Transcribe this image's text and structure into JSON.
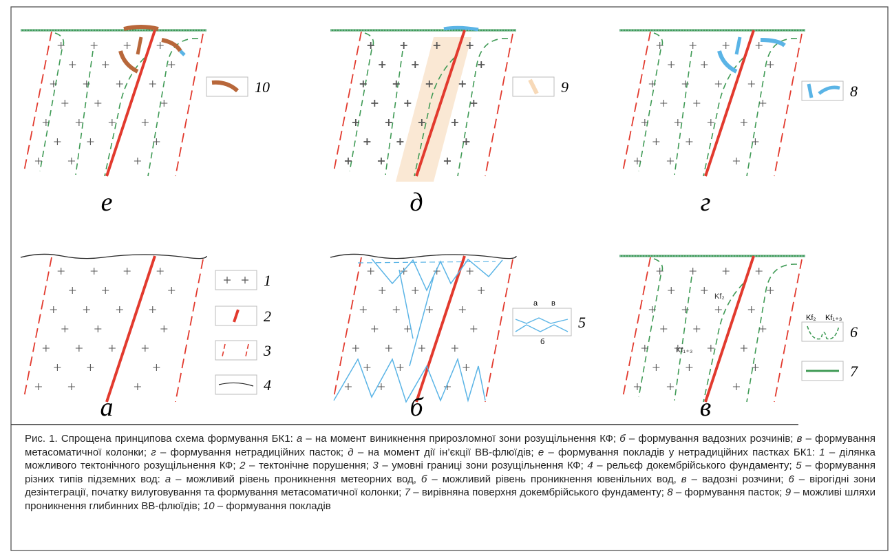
{
  "panels": [
    {
      "label": "е"
    },
    {
      "label": "д"
    },
    {
      "label": "г"
    },
    {
      "label": "а"
    },
    {
      "label": "б"
    },
    {
      "label": "в"
    }
  ],
  "panel_v_labels": [
    "Kf₂",
    "Kf₁₊₃"
  ],
  "legend": [
    {
      "number": "10"
    },
    {
      "number": "9"
    },
    {
      "number": "8"
    },
    {
      "number": "1"
    },
    {
      "number": "2"
    },
    {
      "number": "3"
    },
    {
      "number": "4"
    },
    {
      "number": "5",
      "labels": [
        "а",
        "в",
        "б"
      ]
    },
    {
      "number": "6",
      "labels": [
        "Kf₂",
        "Kf₁₊₃"
      ]
    },
    {
      "number": "7"
    }
  ],
  "caption": {
    "segments": [
      {
        "text": "Рис. 1. Спрощена принципова схема формування БК1: "
      },
      {
        "text": "а",
        "italic": true
      },
      {
        "text": " – на момент виникнення прирозломної зони розущільнення КФ; "
      },
      {
        "text": "б",
        "italic": true
      },
      {
        "text": " – формування вадозних розчинів; "
      },
      {
        "text": "в",
        "italic": true
      },
      {
        "text": " – формування метасоматичної колонки; "
      },
      {
        "text": "г",
        "italic": true
      },
      {
        "text": " – формування нетрадиційних пасток; "
      },
      {
        "text": "д",
        "italic": true
      },
      {
        "text": " – на момент дії ін’єкції ВВ-флюїдів; "
      },
      {
        "text": "е",
        "italic": true
      },
      {
        "text": " – формування покладів у нетрадиційних пастках БК1: "
      },
      {
        "text": "1",
        "italic": true
      },
      {
        "text": " – ділянка можливого тектонічного розущільнення КФ; "
      },
      {
        "text": "2",
        "italic": true
      },
      {
        "text": " – тектонічне порушення; "
      },
      {
        "text": "3",
        "italic": true
      },
      {
        "text": " – умовні границі зони розущільнення КФ; "
      },
      {
        "text": "4",
        "italic": true
      },
      {
        "text": " – рельєф докембрійського фундаменту; "
      },
      {
        "text": "5",
        "italic": true
      },
      {
        "text": " – формування різних типів підземних вод: "
      },
      {
        "text": "а",
        "italic": true
      },
      {
        "text": " – можливий рівень проникнення метеорних вод, "
      },
      {
        "text": "б",
        "italic": true
      },
      {
        "text": " – можливий рівень проникнення ювенільних вод, "
      },
      {
        "text": "в",
        "italic": true
      },
      {
        "text": " – вадозні розчини; "
      },
      {
        "text": "6",
        "italic": true
      },
      {
        "text": " – вірогідні зони дезінтеграції, початку вилуговування та формування метасоматичної колонки; "
      },
      {
        "text": "7",
        "italic": true
      },
      {
        "text": " – вирівняна поверхня докембрійського фундаменту; "
      },
      {
        "text": "8",
        "italic": true
      },
      {
        "text": " – формування пасток; "
      },
      {
        "text": "9",
        "italic": true
      },
      {
        "text": " – можливі шляхи проникнення глибинних ВВ-флюїдів; "
      },
      {
        "text": "10",
        "italic": true
      },
      {
        "text": " – формування покладів"
      }
    ]
  }
}
